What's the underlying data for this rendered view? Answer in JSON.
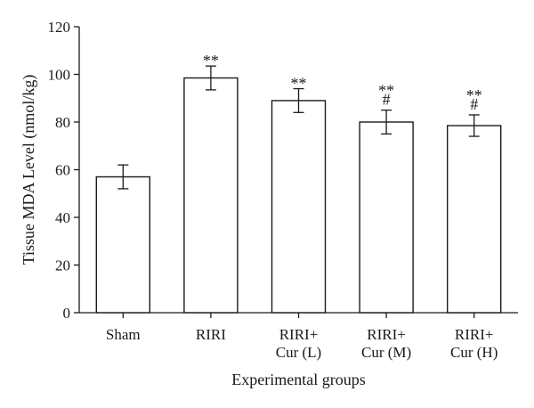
{
  "chart_data": {
    "type": "bar",
    "xlabel": "Experimental groups",
    "ylabel": "Tissue MDA Level (nmol/kg)",
    "ylim": [
      0,
      120
    ],
    "yticks": [
      0,
      20,
      40,
      60,
      80,
      100,
      120
    ],
    "grid": false,
    "categories": [
      [
        "Sham"
      ],
      [
        "RIRI"
      ],
      [
        "RIRI+",
        "Cur (L)"
      ],
      [
        "RIRI+",
        "Cur (M)"
      ],
      [
        "RIRI+",
        "Cur (H)"
      ]
    ],
    "values": [
      57,
      98.5,
      89,
      80,
      78.5
    ],
    "errors": [
      5,
      5,
      5,
      5,
      4.5
    ],
    "annotations": [
      [],
      [
        "**"
      ],
      [
        "**"
      ],
      [
        "**",
        "#"
      ],
      [
        "**",
        "#"
      ]
    ],
    "colors": {
      "bar_fill": "#ffffff",
      "bar_stroke": "#1a1a1a"
    }
  }
}
